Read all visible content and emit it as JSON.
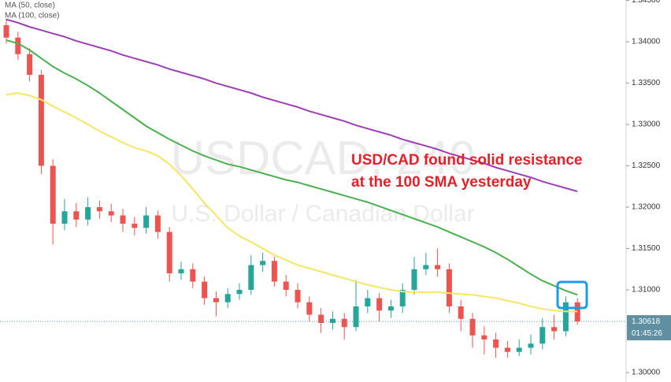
{
  "chart_data": {
    "type": "candlestick",
    "legend": [
      "MA (50, close)",
      "MA (100, close)"
    ],
    "watermark": "USDCAD, 240",
    "watermark_subtitle": "U.S. Dollar / Canadian Dollar",
    "annotation": [
      "USD/CAD found solid resistance",
      "at the 100 SMA yesterday"
    ],
    "up_color": "#26a69a",
    "down_color": "#ef5350",
    "open": [
      1.342,
      1.3405,
      1.3385,
      1.336,
      1.325,
      1.318,
      1.3195,
      1.3185,
      1.32,
      1.3195,
      1.319,
      1.318,
      1.3175,
      1.319,
      1.317,
      1.312,
      1.3125,
      1.311,
      1.309,
      1.3085,
      1.3095,
      1.31,
      1.313,
      1.3135,
      1.311,
      1.31,
      1.3085,
      1.307,
      1.306,
      1.3065,
      1.3055,
      1.308,
      1.309,
      1.3075,
      1.308,
      1.31,
      1.3125,
      1.313,
      1.3125,
      1.308,
      1.3065,
      1.3045,
      1.304,
      1.303,
      1.3025,
      1.303,
      1.3035,
      1.3055,
      1.305,
      1.3085
    ],
    "high": [
      1.3428,
      1.3412,
      1.3392,
      1.3366,
      1.3258,
      1.321,
      1.3205,
      1.3212,
      1.3208,
      1.3204,
      1.3198,
      1.3188,
      1.32,
      1.3196,
      1.3176,
      1.3134,
      1.3132,
      1.3116,
      1.3098,
      1.3102,
      1.3108,
      1.3142,
      1.3145,
      1.314,
      1.3118,
      1.3108,
      1.3092,
      1.3078,
      1.3074,
      1.3072,
      1.3112,
      1.31,
      1.3096,
      1.3088,
      1.3108,
      1.314,
      1.3145,
      1.315,
      1.3132,
      1.3088,
      1.3072,
      1.3056,
      1.3048,
      1.3038,
      1.304,
      1.3046,
      1.3066,
      1.307,
      1.3092,
      1.309
    ],
    "low": [
      1.3398,
      1.3378,
      1.3352,
      1.324,
      1.3155,
      1.3172,
      1.3176,
      1.3178,
      1.3186,
      1.3182,
      1.317,
      1.3166,
      1.3168,
      1.3162,
      1.311,
      1.3112,
      1.3102,
      1.3082,
      1.3068,
      1.3078,
      1.3088,
      1.3094,
      1.3122,
      1.3104,
      1.3092,
      1.3078,
      1.3062,
      1.3048,
      1.3052,
      1.304,
      1.305,
      1.3072,
      1.3062,
      1.3066,
      1.3072,
      1.3094,
      1.3118,
      1.3116,
      1.3072,
      1.305,
      1.303,
      1.3022,
      1.3018,
      1.3018,
      1.302,
      1.3022,
      1.3028,
      1.304,
      1.3044,
      1.3058
    ],
    "close": [
      1.3405,
      1.3385,
      1.336,
      1.325,
      1.318,
      1.3195,
      1.3185,
      1.32,
      1.3195,
      1.319,
      1.318,
      1.3175,
      1.319,
      1.317,
      1.312,
      1.3125,
      1.311,
      1.309,
      1.3085,
      1.3095,
      1.31,
      1.313,
      1.3135,
      1.311,
      1.31,
      1.3085,
      1.307,
      1.306,
      1.3065,
      1.3055,
      1.308,
      1.309,
      1.3075,
      1.308,
      1.31,
      1.3125,
      1.313,
      1.3125,
      1.308,
      1.3065,
      1.3045,
      1.304,
      1.303,
      1.3025,
      1.303,
      1.3035,
      1.3055,
      1.305,
      1.3085,
      1.30618
    ],
    "series": [
      {
        "name": "MA (50, close)",
        "color": "#f5e663",
        "values": [
          1.3336,
          1.3338,
          1.3335,
          1.333,
          1.3322,
          1.3315,
          1.3308,
          1.33,
          1.3292,
          1.3285,
          1.3278,
          1.3272,
          1.3268,
          1.3262,
          1.3252,
          1.3238,
          1.3222,
          1.3205,
          1.319,
          1.3175,
          1.3165,
          1.3158,
          1.315,
          1.3142,
          1.3136,
          1.313,
          1.3126,
          1.3122,
          1.3118,
          1.3114,
          1.311,
          1.3106,
          1.3103,
          1.31,
          1.3098,
          1.3097,
          1.3097,
          1.3097,
          1.3096,
          1.3095,
          1.3094,
          1.3092,
          1.309,
          1.3087,
          1.3084,
          1.308,
          1.3077,
          1.3075,
          1.3074,
          1.3074
        ]
      },
      {
        "name": "MA (100, close)",
        "color": "#4caf50",
        "values": [
          1.3402,
          1.3398,
          1.339,
          1.338,
          1.337,
          1.3362,
          1.3355,
          1.3347,
          1.3338,
          1.3328,
          1.3318,
          1.3308,
          1.3298,
          1.329,
          1.3282,
          1.3275,
          1.3268,
          1.3262,
          1.3257,
          1.3252,
          1.3249,
          1.3245,
          1.3241,
          1.3237,
          1.3233,
          1.323,
          1.3226,
          1.3222,
          1.3218,
          1.3214,
          1.321,
          1.3206,
          1.3201,
          1.3196,
          1.3191,
          1.3186,
          1.3181,
          1.3176,
          1.317,
          1.3164,
          1.3158,
          1.3152,
          1.3145,
          1.3137,
          1.3128,
          1.3119,
          1.3111,
          1.3105,
          1.3099,
          1.3094
        ]
      },
      {
        "color": "#9c3fb5",
        "values": [
          1.3427,
          1.3423,
          1.3418,
          1.3414,
          1.341,
          1.3406,
          1.3401,
          1.3397,
          1.3393,
          1.3389,
          1.3384,
          1.338,
          1.3376,
          1.3372,
          1.3367,
          1.3363,
          1.3359,
          1.3355,
          1.335,
          1.3346,
          1.3342,
          1.3338,
          1.3333,
          1.3329,
          1.3325,
          1.3321,
          1.3316,
          1.3312,
          1.3308,
          1.3304,
          1.3299,
          1.3295,
          1.3291,
          1.3287,
          1.3282,
          1.3278,
          1.3274,
          1.327,
          1.3265,
          1.3261,
          1.3257,
          1.3253,
          1.3248,
          1.3244,
          1.324,
          1.3236,
          1.3231,
          1.3227,
          1.3223,
          1.3219
        ]
      }
    ],
    "last_price": 1.30618,
    "last_price_color": "#5f8fa0",
    "countdown": "01:45:26",
    "ylim": [
      1.29886,
      1.34505
    ],
    "yticks": [
      {
        "value": 1.345,
        "label": "1.34500"
      },
      {
        "value": 1.34,
        "label": "1.34000"
      },
      {
        "value": 1.335,
        "label": "1.33500"
      },
      {
        "value": 1.33,
        "label": "1.33000"
      },
      {
        "value": 1.325,
        "label": "1.32500"
      },
      {
        "value": 1.32,
        "label": "1.32000"
      },
      {
        "value": 1.315,
        "label": "1.31500"
      },
      {
        "value": 1.31,
        "label": "1.31000"
      },
      {
        "value": 1.3,
        "label": "1.30000"
      }
    ]
  }
}
